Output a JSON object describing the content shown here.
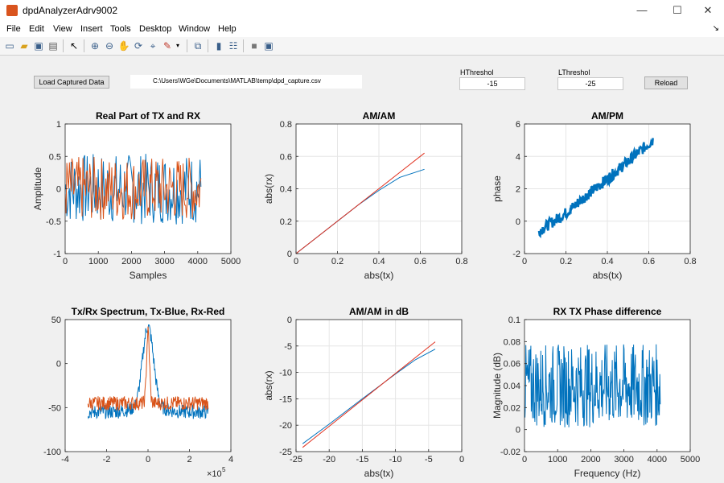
{
  "window": {
    "title": "dpdAnalyzerAdrv9002",
    "minimize": "—",
    "maximize": "☐",
    "close": "✕"
  },
  "menu": {
    "items": [
      "File",
      "Edit",
      "View",
      "Insert",
      "Tools",
      "Desktop",
      "Window",
      "Help"
    ]
  },
  "toolbar": {
    "icons": [
      "new-figure-icon",
      "open-icon",
      "save-icon",
      "print-icon",
      "pointer-icon",
      "zoom-in-icon",
      "zoom-out-icon",
      "pan-icon",
      "rotate-icon",
      "data-cursor-icon",
      "brush-icon",
      "brush-dropdown-icon",
      "link-plot-icon",
      "colorbar-icon",
      "legend-icon",
      "hide-plot-tools-icon",
      "show-plot-tools-icon"
    ]
  },
  "controls": {
    "load_button": "Load Captured Data",
    "file_path": "C:\\Users\\WGe\\Documents\\MATLAB\\temp\\dpd_capture.csv",
    "hthreshold_label": "HThreshol",
    "hthreshold_value": "-15",
    "lthreshold_label": "LThreshol",
    "lthreshold_value": "-25",
    "reload_button": "Reload"
  },
  "colors": {
    "blue": "#0072bd",
    "red": "#e0301e",
    "orange": "#d95319"
  },
  "chart_data": [
    {
      "type": "line",
      "title": "Real Part of TX and RX",
      "xlabel": "Samples",
      "ylabel": "Amplitude",
      "xlim": [
        0,
        5000
      ],
      "ylim": [
        -1,
        1
      ],
      "xticks": [
        "0",
        "1000",
        "2000",
        "3000",
        "4000",
        "5000"
      ],
      "yticks": [
        "-1",
        "-0.5",
        "0",
        "0.5",
        "1"
      ],
      "series": [
        {
          "color": "#0072bd",
          "x_range": [
            0,
            4096
          ],
          "y_range": [
            -0.55,
            0.55
          ]
        },
        {
          "color": "#d95319",
          "x_range": [
            0,
            4096
          ],
          "y_range": [
            -0.5,
            0.5
          ]
        }
      ],
      "grid": false
    },
    {
      "type": "line",
      "title": "AM/AM",
      "xlabel": "abs(tx)",
      "ylabel": "abs(rx)",
      "xlim": [
        0,
        0.8
      ],
      "ylim": [
        0,
        0.8
      ],
      "xticks": [
        "0",
        "0.2",
        "0.4",
        "0.6",
        "0.8"
      ],
      "yticks": [
        "0",
        "0.2",
        "0.4",
        "0.6",
        "0.8"
      ],
      "series": [
        {
          "color": "#0072bd",
          "x": [
            0,
            0.1,
            0.2,
            0.3,
            0.4,
            0.5,
            0.62
          ],
          "y": [
            0,
            0.1,
            0.2,
            0.3,
            0.39,
            0.47,
            0.52
          ]
        },
        {
          "color": "#e0301e",
          "x": [
            0,
            0.62
          ],
          "y": [
            0,
            0.62
          ]
        }
      ],
      "grid": true
    },
    {
      "type": "scatter",
      "title": "AM/PM",
      "xlabel": "abs(tx)",
      "ylabel": "phase",
      "xlim": [
        0,
        0.8
      ],
      "ylim": [
        -2,
        6
      ],
      "xticks": [
        "0",
        "0.2",
        "0.4",
        "0.6",
        "0.8"
      ],
      "yticks": [
        "-2",
        "0",
        "2",
        "4",
        "6"
      ],
      "series": [
        {
          "color": "#0072bd",
          "x": [
            0.07,
            0.2,
            0.3,
            0.4,
            0.5,
            0.62
          ],
          "y": [
            -0.6,
            0.5,
            1.6,
            2.6,
            3.7,
            5.0
          ]
        }
      ],
      "grid": true
    },
    {
      "type": "line",
      "title": "Tx/Rx Spectrum, Tx-Blue, Rx-Red",
      "xlabel": "",
      "ylabel": "",
      "xlim": [
        -4,
        4
      ],
      "ylim": [
        -100,
        50
      ],
      "x_exponent": "10",
      "x_exponent_power": "5",
      "xticks": [
        "-4",
        "-2",
        "0",
        "2",
        "4"
      ],
      "yticks": [
        "-100",
        "-50",
        "0",
        "50"
      ],
      "series": [
        {
          "color": "#0072bd",
          "x_range": [
            -2.9,
            2.9
          ],
          "peak": 42,
          "floor": -55
        },
        {
          "color": "#d95319",
          "x_range": [
            -2.9,
            2.9
          ],
          "peak": 36,
          "floor": -45
        }
      ],
      "grid": false
    },
    {
      "type": "line",
      "title": "AM/AM in dB",
      "xlabel": "abs(tx)",
      "ylabel": "abs(rx)",
      "xlim": [
        -25,
        0
      ],
      "ylim": [
        -25,
        0
      ],
      "xticks": [
        "-25",
        "-20",
        "-15",
        "-10",
        "-5",
        "0"
      ],
      "yticks": [
        "-25",
        "-20",
        "-15",
        "-10",
        "-5",
        "0"
      ],
      "series": [
        {
          "color": "#0072bd",
          "x": [
            -24,
            -20,
            -15,
            -10,
            -7,
            -4
          ],
          "y": [
            -23.5,
            -19.8,
            -15,
            -10.3,
            -7.6,
            -5.6
          ]
        },
        {
          "color": "#e0301e",
          "x": [
            -24,
            -4
          ],
          "y": [
            -24.2,
            -4.2
          ]
        }
      ],
      "grid": true
    },
    {
      "type": "line",
      "title": "RX TX Phase difference",
      "xlabel": "Frequency (Hz)",
      "ylabel": "Magnitude (dB)",
      "xlim": [
        0,
        5000
      ],
      "ylim": [
        -0.02,
        0.1
      ],
      "xticks": [
        "0",
        "1000",
        "2000",
        "3000",
        "4000",
        "5000"
      ],
      "yticks": [
        "-0.02",
        "0",
        "0.02",
        "0.04",
        "0.06",
        "0.08",
        "0.1"
      ],
      "series": [
        {
          "color": "#0072bd",
          "x_range": [
            0,
            4096
          ],
          "y_range": [
            0.0,
            0.08
          ],
          "mean": 0.04
        }
      ],
      "grid": false
    }
  ]
}
